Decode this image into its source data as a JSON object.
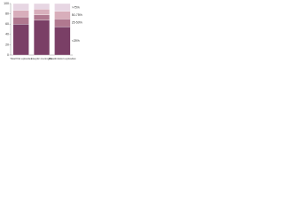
{
  "chart_data": {
    "type": "stacked-bar",
    "categories": [
      "Total first episodes",
      "Aseptic meningitis",
      "Readmission episodes"
    ],
    "series": [
      {
        "name": "<25%",
        "color": "#7a3f66",
        "values": [
          60,
          68,
          55
        ]
      },
      {
        "name": "25-50%",
        "color": "#b0788f",
        "values": [
          14,
          10,
          15
        ]
      },
      {
        "name": "50-75%",
        "color": "#d8aebb",
        "values": [
          13,
          11,
          15
        ]
      },
      {
        "name": ">75%",
        "color": "#e7d6e3",
        "values": [
          13,
          11,
          15
        ]
      }
    ],
    "ylim": [
      0,
      100
    ],
    "yticks": [
      0,
      20,
      40,
      60,
      80,
      100
    ]
  }
}
